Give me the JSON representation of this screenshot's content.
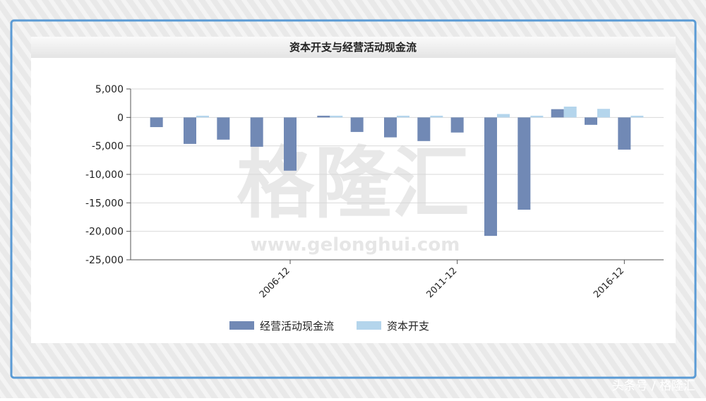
{
  "chart_data": {
    "type": "bar",
    "title": "资本开支与经营活动现金流",
    "categories": [
      null,
      null,
      null,
      null,
      "2006-12",
      null,
      null,
      null,
      null,
      "2011-12",
      null,
      null,
      null,
      null,
      "2016-12"
    ],
    "series": [
      {
        "name": "经营活动现金流",
        "color": "#7189b5",
        "values": [
          -1700,
          -4650,
          -3900,
          -5150,
          -9350,
          300,
          -2550,
          -3500,
          -4150,
          -2650,
          -20800,
          -16200,
          1450,
          -1300,
          -5650
        ]
      },
      {
        "name": "资本开支",
        "color": "#b4d5ec",
        "values": [
          0,
          300,
          0,
          0,
          0,
          300,
          0,
          300,
          300,
          0,
          600,
          300,
          1900,
          1500,
          300
        ]
      }
    ],
    "ylim": [
      -25000,
      5000
    ],
    "yticks": [
      {
        "value": -25000,
        "label": "-25,000"
      },
      {
        "value": -20000,
        "label": "-20,000"
      },
      {
        "value": -15000,
        "label": "-15,000"
      },
      {
        "value": -10000,
        "label": "-10,000"
      },
      {
        "value": -5000,
        "label": "-5,000"
      },
      0,
      {
        "value": 5000,
        "label": "5,000"
      }
    ],
    "grid": true,
    "legend": "bottom"
  },
  "watermark": {
    "logo": "格隆汇",
    "url": "www.gelonghui.com"
  },
  "source": "头条号 / 格隆汇"
}
